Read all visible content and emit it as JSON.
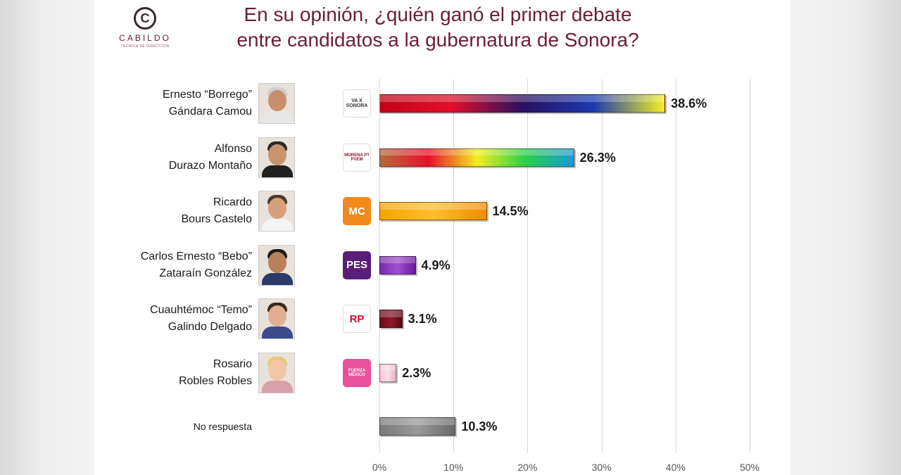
{
  "logo": {
    "mark": "C",
    "name": "CABILDO",
    "tagline": "TÉCNICA DE DIRECCIÓN"
  },
  "title_line1": "En su opinión, ¿quién ganó el primer debate",
  "title_line2": "entre candidatos a la gubernatura de Sonora?",
  "chart_data": {
    "type": "bar",
    "orientation": "horizontal",
    "title": "En su opinión, ¿quién ganó el primer debate entre candidatos a la gubernatura de Sonora?",
    "xlim": [
      0,
      50
    ],
    "x_ticks": [
      "0%",
      "10%",
      "20%",
      "30%",
      "40%",
      "50%"
    ],
    "grid": true,
    "categories": [
      "Ernesto “Borrego” Gándara Camou",
      "Alfonso Durazo Montaño",
      "Ricardo Bours Castelo",
      "Carlos Ernesto “Bebo” Zataraín González",
      "Cuauhtémoc “Temo” Galindo Delgado",
      "Rosario Robles Robles",
      "No respuesta"
    ],
    "values": [
      38.6,
      26.3,
      14.5,
      4.9,
      3.1,
      2.3,
      10.3
    ],
    "value_labels": [
      "38.6%",
      "26.3%",
      "14.5%",
      "4.9%",
      "3.1%",
      "2.3%",
      "10.3%"
    ]
  },
  "rows": [
    {
      "line1": "Ernesto “Borrego”",
      "line2": "Gándara Camou",
      "party": "VA X SONORA",
      "party_icon": "va-por-sonora-logo",
      "bar_colors": [
        "#c4001a",
        "#e0102a",
        "#2a1060",
        "#1a3ab0",
        "#f2f020"
      ],
      "party_bg": "#ffffff",
      "party_fg": "#333333",
      "skin": "#c98e6c",
      "hair": "#cfcfcf",
      "shirt": "#e8e8e8"
    },
    {
      "line1": "Alfonso",
      "line2": "Durazo Montaño",
      "party": "MORENA PT PVEM",
      "party_icon": "juntos-haremos-historia-logo",
      "bar_colors": [
        "#b56a3a",
        "#e8102a",
        "#f0f020",
        "#2ad04a",
        "#1a9ad8"
      ],
      "party_bg": "#ffffff",
      "party_fg": "#8b1a2a",
      "skin": "#c9946c",
      "hair": "#2a2a2a",
      "shirt": "#202020"
    },
    {
      "line1": "Ricardo",
      "line2": "Bours Castelo",
      "party": "MC",
      "party_icon": "movimiento-ciudadano-logo",
      "bar_colors": [
        "#f5a400",
        "#ffbe30",
        "#f08c00"
      ],
      "party_bg": "#f08a1c",
      "party_fg": "#ffffff",
      "skin": "#d7a07a",
      "hair": "#4a3a2a",
      "shirt": "#f4f4f4"
    },
    {
      "line1": "Carlos Ernesto “Bebo”",
      "line2": "Zataraín González",
      "party": "PES",
      "party_icon": "pes-logo",
      "bar_colors": [
        "#7a2aa8",
        "#a050d0",
        "#6a1a98"
      ],
      "party_bg": "#5a1e78",
      "party_fg": "#ffffff",
      "skin": "#b9805a",
      "hair": "#1a1a1a",
      "shirt": "#2a3a6a"
    },
    {
      "line1": "Cuauhtémoc “Temo”",
      "line2": "Galindo Delgado",
      "party": "RP",
      "party_icon": "redes-sociales-progresistas-logo",
      "bar_colors": [
        "#6a0a1a",
        "#8a1a2a",
        "#5a0814"
      ],
      "party_bg": "#ffffff",
      "party_fg": "#c8102e",
      "skin": "#e0b090",
      "hair": "#3a2a1a",
      "shirt": "#3a4a8a"
    },
    {
      "line1": "Rosario",
      "line2": "Robles Robles",
      "party": "FUERZA MÉXICO",
      "party_icon": "fuerza-por-mexico-logo",
      "bar_colors": [
        "#f4c8d6",
        "#fadce6",
        "#eab4c6"
      ],
      "party_bg": "#e8509a",
      "party_fg": "#ffffff",
      "skin": "#f0c8a8",
      "hair": "#e8c878",
      "shirt": "#d8a0a8"
    },
    {
      "line1": "No respuesta",
      "line2": "",
      "party": "",
      "party_icon": "",
      "bar_colors": [
        "#7a7a7a",
        "#9a9a9a",
        "#6a6a6a"
      ]
    }
  ]
}
